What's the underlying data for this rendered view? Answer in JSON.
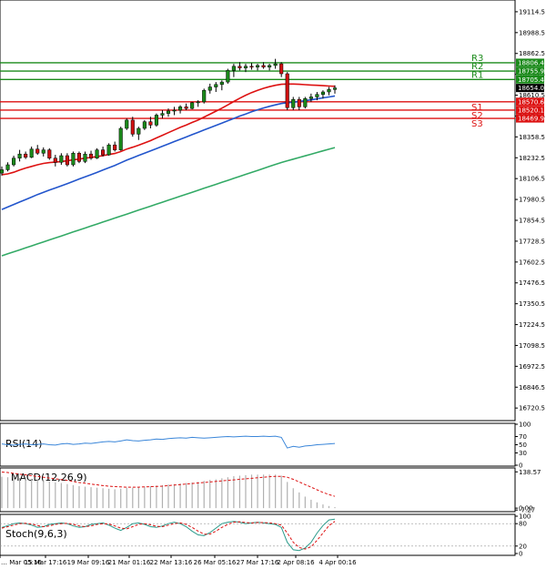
{
  "colors": {
    "background": "#ffffff",
    "bull_candle": "#1a8a1a",
    "bear_candle": "#d01010",
    "resistance": "#1a8a1a",
    "support": "#dd1111",
    "ma_fast": "#dd1111",
    "ma_mid": "#2255cc",
    "ma_slow": "#33aa66",
    "rsi": "#3a86d9",
    "macd_hist": "#b0b0b0",
    "macd_signal": "#dd1111",
    "stoch_k": "#2a9a8a",
    "stoch_d": "#dd1111",
    "price_tag": "#000000"
  },
  "chart_data": [
    {
      "type": "candlestick",
      "ylim": [
        16650,
        19180
      ],
      "y_ticks": [
        "19114.5",
        "18988.5",
        "18862.5",
        "18736.5",
        "18610.5",
        "18484.5",
        "18358.5",
        "18232.5",
        "18106.5",
        "17980.5",
        "17854.5",
        "17728.5",
        "17602.5",
        "17476.5",
        "17350.5",
        "17224.5",
        "17098.5",
        "16972.5",
        "16846.5",
        "16720.5"
      ],
      "x_ticks": [
        "… Mar 05:16",
        "15 Mar 17:16",
        "19 Mar 09:16",
        "21 Mar 01:16",
        "22 Mar 13:16",
        "26 Mar 05:16",
        "27 Mar 17:16",
        "2 Apr 08:16",
        "4 Apr 00:16"
      ],
      "candles": [
        [
          18140,
          18180,
          18125,
          18160
        ],
        [
          18160,
          18205,
          18150,
          18190
        ],
        [
          18190,
          18245,
          18180,
          18230
        ],
        [
          18230,
          18280,
          18210,
          18255
        ],
        [
          18255,
          18270,
          18225,
          18235
        ],
        [
          18235,
          18300,
          18230,
          18285
        ],
        [
          18285,
          18310,
          18250,
          18260
        ],
        [
          18260,
          18295,
          18240,
          18280
        ],
        [
          18280,
          18290,
          18220,
          18230
        ],
        [
          18230,
          18250,
          18180,
          18205
        ],
        [
          18205,
          18260,
          18190,
          18245
        ],
        [
          18245,
          18260,
          18180,
          18190
        ],
        [
          18190,
          18270,
          18180,
          18260
        ],
        [
          18260,
          18270,
          18200,
          18210
        ],
        [
          18210,
          18270,
          18200,
          18255
        ],
        [
          18255,
          18275,
          18220,
          18230
        ],
        [
          18230,
          18290,
          18225,
          18280
        ],
        [
          18280,
          18300,
          18240,
          18250
        ],
        [
          18250,
          18320,
          18245,
          18310
        ],
        [
          18310,
          18330,
          18270,
          18280
        ],
        [
          18280,
          18420,
          18275,
          18410
        ],
        [
          18410,
          18470,
          18400,
          18460
        ],
        [
          18460,
          18480,
          18360,
          18375
        ],
        [
          18375,
          18420,
          18340,
          18410
        ],
        [
          18410,
          18460,
          18400,
          18450
        ],
        [
          18450,
          18480,
          18410,
          18430
        ],
        [
          18430,
          18500,
          18420,
          18490
        ],
        [
          18490,
          18520,
          18470,
          18500
        ],
        [
          18500,
          18530,
          18480,
          18515
        ],
        [
          18515,
          18540,
          18490,
          18520
        ],
        [
          18520,
          18550,
          18500,
          18540
        ],
        [
          18540,
          18560,
          18520,
          18530
        ],
        [
          18530,
          18570,
          18525,
          18565
        ],
        [
          18565,
          18580,
          18540,
          18570
        ],
        [
          18570,
          18650,
          18560,
          18640
        ],
        [
          18640,
          18680,
          18620,
          18660
        ],
        [
          18660,
          18690,
          18630,
          18675
        ],
        [
          18675,
          18700,
          18640,
          18690
        ],
        [
          18690,
          18770,
          18680,
          18760
        ],
        [
          18760,
          18800,
          18720,
          18785
        ],
        [
          18785,
          18810,
          18760,
          18775
        ],
        [
          18775,
          18800,
          18750,
          18785
        ],
        [
          18785,
          18805,
          18765,
          18780
        ],
        [
          18780,
          18800,
          18760,
          18790
        ],
        [
          18790,
          18810,
          18770,
          18780
        ],
        [
          18780,
          18800,
          18760,
          18790
        ],
        [
          18790,
          18830,
          18770,
          18800
        ],
        [
          18800,
          18810,
          18720,
          18740
        ],
        [
          18740,
          18750,
          18520,
          18535
        ],
        [
          18535,
          18600,
          18520,
          18585
        ],
        [
          18585,
          18600,
          18520,
          18540
        ],
        [
          18540,
          18600,
          18530,
          18590
        ],
        [
          18590,
          18620,
          18570,
          18600
        ],
        [
          18600,
          18630,
          18580,
          18615
        ],
        [
          18615,
          18640,
          18590,
          18630
        ],
        [
          18630,
          18660,
          18610,
          18645
        ],
        [
          18645,
          18670,
          18620,
          18654
        ]
      ],
      "moving_averages": {
        "fast": [
          18130,
          18135,
          18145,
          18158,
          18170,
          18180,
          18190,
          18198,
          18203,
          18206,
          18210,
          18214,
          18220,
          18224,
          18230,
          18234,
          18240,
          18245,
          18252,
          18258,
          18270,
          18285,
          18296,
          18308,
          18322,
          18336,
          18352,
          18368,
          18384,
          18400,
          18416,
          18430,
          18446,
          18460,
          18478,
          18496,
          18514,
          18532,
          18552,
          18572,
          18592,
          18610,
          18626,
          18640,
          18652,
          18662,
          18670,
          18676,
          18678,
          18678,
          18676,
          18674,
          18672,
          18670,
          18668,
          18666,
          18664
        ],
        "mid": [
          17920,
          17935,
          17950,
          17965,
          17980,
          17995,
          18010,
          18024,
          18037,
          18050,
          18063,
          18076,
          18090,
          18104,
          18117,
          18130,
          18144,
          18158,
          18172,
          18186,
          18202,
          18218,
          18232,
          18246,
          18260,
          18274,
          18288,
          18302,
          18316,
          18330,
          18344,
          18358,
          18372,
          18386,
          18400,
          18414,
          18428,
          18442,
          18456,
          18470,
          18484,
          18497,
          18510,
          18522,
          18533,
          18543,
          18552,
          18560,
          18565,
          18568,
          18572,
          18577,
          18582,
          18588,
          18594,
          18600,
          18606
        ],
        "slow": [
          17640,
          17652,
          17664,
          17676,
          17688,
          17700,
          17712,
          17724,
          17736,
          17748,
          17760,
          17772,
          17784,
          17796,
          17808,
          17820,
          17832,
          17844,
          17856,
          17868,
          17880,
          17892,
          17904,
          17916,
          17928,
          17940,
          17952,
          17964,
          17976,
          17988,
          18000,
          18012,
          18024,
          18036,
          18048,
          18060,
          18072,
          18084,
          18096,
          18108,
          18120,
          18132,
          18144,
          18156,
          18168,
          18180,
          18192,
          18204,
          18214,
          18224,
          18234,
          18244,
          18254,
          18264,
          18274,
          18284,
          18294
        ]
      },
      "levels": [
        {
          "label": "R3",
          "value": 18806.4,
          "tag": "18806.4",
          "role": "resistance"
        },
        {
          "label": "R2",
          "value": 18755.9,
          "tag": "18755.9",
          "role": "resistance"
        },
        {
          "label": "R1",
          "value": 18705.4,
          "tag": "18705.4",
          "role": "resistance"
        },
        {
          "label": "S1",
          "value": 18570.6,
          "tag": "18570.6",
          "role": "support"
        },
        {
          "label": "S2",
          "value": 18520.1,
          "tag": "18520.1",
          "role": "support"
        },
        {
          "label": "S3",
          "value": 18469.9,
          "tag": "18469.9",
          "role": "support"
        }
      ],
      "current_price": {
        "value": 18654.0,
        "tag": "18654.0"
      }
    },
    {
      "type": "line",
      "title": "RSI(14)",
      "ylim": [
        0,
        100
      ],
      "y_ticks": [
        "100",
        "70",
        "50",
        "30",
        "0"
      ],
      "values": [
        52,
        50,
        49,
        51,
        52,
        50,
        51,
        52,
        50,
        49,
        52,
        53,
        51,
        52,
        54,
        53,
        55,
        57,
        58,
        57,
        59,
        62,
        60,
        59,
        61,
        62,
        64,
        63,
        65,
        66,
        67,
        66,
        68,
        67,
        66,
        67,
        68,
        69,
        70,
        69,
        70,
        71,
        70,
        70,
        71,
        70,
        71,
        68,
        42,
        46,
        44,
        47,
        48,
        50,
        51,
        52,
        53
      ]
    },
    {
      "type": "bar",
      "title": "MACD(12,26,9)",
      "ylim": [
        -10,
        150
      ],
      "y_ticks": [
        "138.57",
        "0.00",
        "-7.27"
      ],
      "histogram": [
        120,
        118,
        116,
        115,
        114,
        112,
        110,
        106,
        102,
        98,
        96,
        92,
        88,
        84,
        82,
        80,
        78,
        76,
        74,
        72,
        74,
        78,
        78,
        80,
        82,
        84,
        86,
        88,
        90,
        92,
        94,
        96,
        98,
        100,
        104,
        108,
        110,
        114,
        118,
        122,
        124,
        126,
        128,
        128,
        128,
        128,
        128,
        124,
        100,
        76,
        60,
        44,
        32,
        22,
        14,
        8,
        4
      ],
      "signal": [
        138,
        136,
        133,
        130,
        127,
        124,
        121,
        118,
        115,
        112,
        109,
        106,
        102,
        98,
        95,
        92,
        89,
        86,
        84,
        82,
        81,
        80,
        80,
        80,
        81,
        82,
        83,
        84,
        86,
        88,
        90,
        92,
        94,
        96,
        98,
        100,
        102,
        104,
        106,
        108,
        110,
        112,
        114,
        116,
        118,
        120,
        121,
        121,
        118,
        110,
        100,
        90,
        80,
        70,
        60,
        52,
        45
      ]
    },
    {
      "type": "line",
      "title": "Stoch(9,6,3)",
      "ylim": [
        0,
        100
      ],
      "y_ticks": [
        "100",
        "80",
        "20",
        "0"
      ],
      "k": [
        70,
        75,
        80,
        82,
        80,
        76,
        70,
        72,
        78,
        80,
        82,
        80,
        74,
        70,
        72,
        78,
        80,
        82,
        76,
        68,
        62,
        70,
        80,
        82,
        78,
        72,
        70,
        74,
        80,
        84,
        80,
        72,
        60,
        50,
        48,
        56,
        68,
        80,
        84,
        86,
        84,
        80,
        82,
        84,
        82,
        80,
        78,
        70,
        30,
        10,
        8,
        15,
        30,
        55,
        75,
        90,
        92
      ],
      "d": [
        68,
        72,
        76,
        80,
        81,
        79,
        75,
        72,
        74,
        78,
        80,
        81,
        78,
        74,
        72,
        74,
        78,
        80,
        79,
        74,
        68,
        66,
        72,
        78,
        80,
        77,
        73,
        72,
        76,
        80,
        82,
        78,
        70,
        60,
        52,
        52,
        60,
        70,
        78,
        84,
        85,
        83,
        82,
        83,
        83,
        82,
        80,
        76,
        55,
        30,
        16,
        12,
        18,
        35,
        55,
        75,
        86
      ]
    }
  ]
}
